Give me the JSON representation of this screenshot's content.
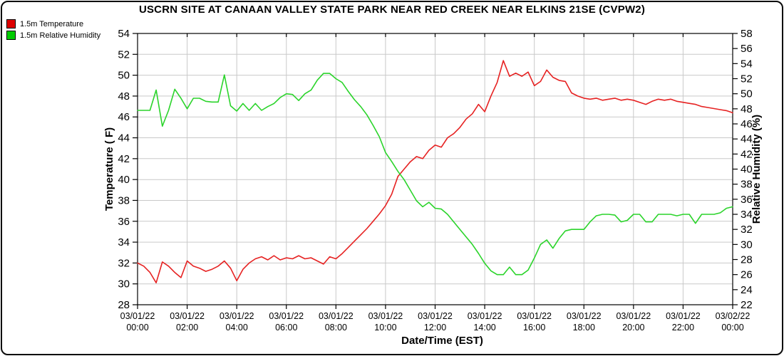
{
  "chart_data": {
    "type": "line",
    "title": "USCRN SITE AT CANAAN VALLEY STATE PARK NEAR RED CREEK NEAR ELKINS 21SE (CVPW2)",
    "xlabel": "Date/Time (EST)",
    "ylabel_left": "Temperature ( F)",
    "ylabel_right": "Relative Humidity (%)",
    "legend_position": "top-left",
    "grid": true,
    "grid_color": "#c9c9c9",
    "axis_color": "#000000",
    "x_start_hour": 0,
    "x_end_hour": 24,
    "x_step_hours": 0.25,
    "x_ticks": [
      {
        "date": "03/01/22",
        "time": "00:00"
      },
      {
        "date": "03/01/22",
        "time": "02:00"
      },
      {
        "date": "03/01/22",
        "time": "04:00"
      },
      {
        "date": "03/01/22",
        "time": "06:00"
      },
      {
        "date": "03/01/22",
        "time": "08:00"
      },
      {
        "date": "03/01/22",
        "time": "10:00"
      },
      {
        "date": "03/01/22",
        "time": "12:00"
      },
      {
        "date": "03/01/22",
        "time": "14:00"
      },
      {
        "date": "03/01/22",
        "time": "16:00"
      },
      {
        "date": "03/01/22",
        "time": "18:00"
      },
      {
        "date": "03/01/22",
        "time": "20:00"
      },
      {
        "date": "03/01/22",
        "time": "22:00"
      },
      {
        "date": "03/02/22",
        "time": "00:00"
      }
    ],
    "y_left": {
      "min": 28,
      "max": 54,
      "step": 2
    },
    "y_right": {
      "min": 22,
      "max": 58,
      "step": 2
    },
    "series": [
      {
        "name": "1.5m Temperature",
        "axis": "left",
        "color": "#e62222",
        "swatch": "#dd0000",
        "values": [
          32.0,
          31.7,
          31.1,
          30.1,
          32.1,
          31.7,
          31.1,
          30.6,
          32.2,
          31.7,
          31.5,
          31.2,
          31.4,
          31.7,
          32.2,
          31.5,
          30.3,
          31.4,
          32.0,
          32.4,
          32.6,
          32.3,
          32.7,
          32.3,
          32.5,
          32.4,
          32.7,
          32.4,
          32.5,
          32.2,
          31.9,
          32.6,
          32.4,
          32.9,
          33.5,
          34.1,
          34.7,
          35.3,
          36.0,
          36.7,
          37.5,
          38.6,
          40.3,
          41.0,
          41.7,
          42.2,
          42.0,
          42.8,
          43.3,
          43.1,
          44.0,
          44.4,
          45.0,
          45.8,
          46.3,
          47.2,
          46.5,
          48.0,
          49.3,
          51.4,
          49.9,
          50.2,
          49.9,
          50.3,
          49.0,
          49.4,
          50.5,
          49.8,
          49.5,
          49.4,
          48.3,
          48.0,
          47.8,
          47.7,
          47.8,
          47.6,
          47.7,
          47.8,
          47.6,
          47.7,
          47.6,
          47.4,
          47.2,
          47.5,
          47.7,
          47.6,
          47.7,
          47.5,
          47.4,
          47.3,
          47.2,
          47.0,
          46.9,
          46.8,
          46.7,
          46.6,
          46.4
        ]
      },
      {
        "name": "1.5m Relative Humidity",
        "axis": "right",
        "color": "#2bd42b",
        "swatch": "#00cc00",
        "values": [
          47.8,
          47.8,
          47.8,
          50.5,
          45.7,
          47.8,
          50.6,
          49.4,
          48.0,
          49.4,
          49.4,
          49.0,
          48.9,
          48.9,
          52.5,
          48.4,
          47.7,
          48.7,
          47.8,
          48.7,
          47.8,
          48.3,
          48.7,
          49.5,
          50.0,
          49.9,
          49.1,
          50.0,
          50.5,
          51.8,
          52.7,
          52.7,
          52.0,
          51.5,
          50.3,
          49.2,
          48.3,
          47.2,
          45.8,
          44.3,
          42.2,
          41.0,
          39.7,
          38.6,
          37.2,
          35.8,
          35.0,
          35.6,
          34.8,
          34.7,
          34.0,
          33.0,
          32.0,
          31.0,
          30.0,
          28.8,
          27.5,
          26.5,
          26.0,
          26.0,
          27.0,
          26.0,
          26.0,
          26.6,
          28.2,
          30.0,
          30.6,
          29.5,
          30.8,
          31.8,
          32.0,
          32.0,
          32.0,
          33.0,
          33.8,
          34.0,
          34.0,
          33.9,
          33.0,
          33.2,
          34.0,
          34.0,
          33.0,
          33.0,
          34.0,
          34.0,
          34.0,
          33.8,
          34.0,
          34.0,
          32.8,
          34.0,
          34.0,
          34.0,
          34.2,
          34.8,
          35.0
        ]
      }
    ]
  }
}
